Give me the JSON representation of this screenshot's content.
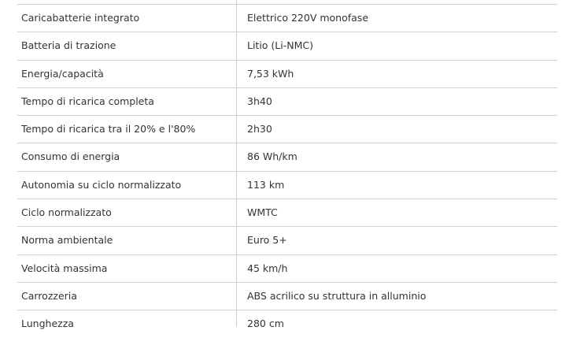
{
  "specs": [
    {
      "label": "Caricabatterie integrato",
      "value": "Elettrico 220V monofase"
    },
    {
      "label": "Batteria di trazione",
      "value": "Litio (Li-NMC)"
    },
    {
      "label": "Energia/capacità",
      "value": "7,53 kWh"
    },
    {
      "label": "Tempo di ricarica completa",
      "value": "3h40"
    },
    {
      "label": "Tempo di ricarica tra il 20% e l'80%",
      "value": "2h30"
    },
    {
      "label": "Consumo di energia",
      "value": "86 Wh/km"
    },
    {
      "label": "Autonomia su ciclo normalizzato",
      "value": "113 km"
    },
    {
      "label": "Ciclo normalizzato",
      "value": "WMTC"
    },
    {
      "label": "Norma ambientale",
      "value": "Euro 5+"
    },
    {
      "label": "Velocità massima",
      "value": "45 km/h"
    },
    {
      "label": "Carrozzeria",
      "value": "ABS acrilico su struttura in alluminio"
    },
    {
      "label": "Lunghezza",
      "value": "280 cm"
    }
  ]
}
